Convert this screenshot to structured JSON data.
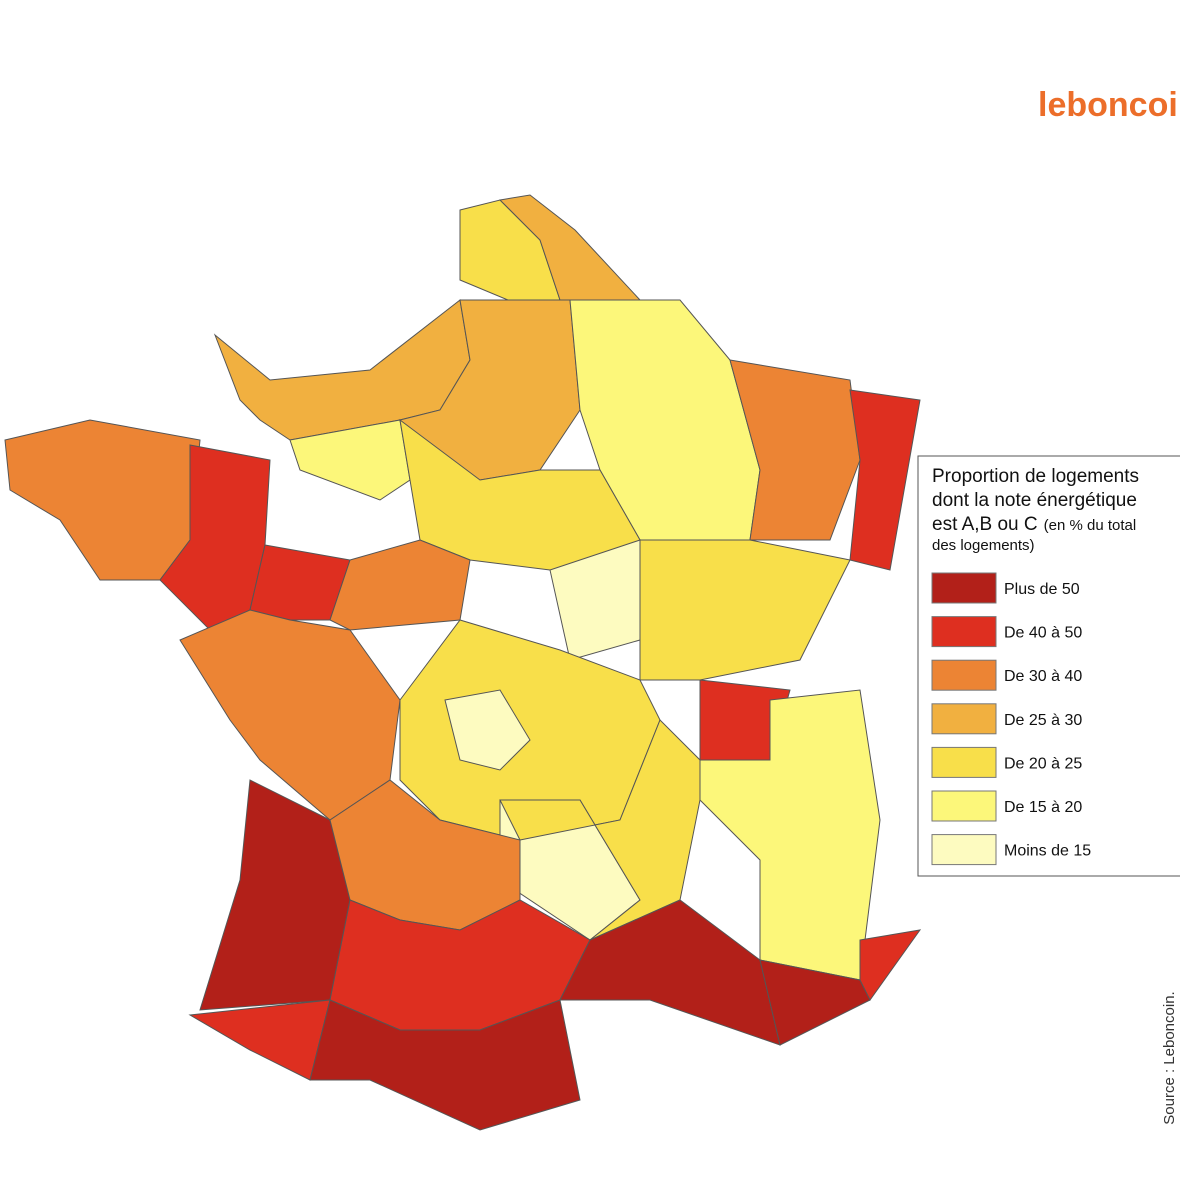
{
  "logo": "leboncoin",
  "legend": {
    "title_lines": [
      "Proportion de logements",
      "dont la note énergétique",
      "est A,B ou C"
    ],
    "subtitle_lines": [
      "(en % du total",
      "des logements)"
    ],
    "items": [
      {
        "label": "Plus de 50",
        "color": "#b22019"
      },
      {
        "label": "De 40 à 50",
        "color": "#de2f20"
      },
      {
        "label": "De 30 à 40",
        "color": "#ec8434"
      },
      {
        "label": "De 25 à 30",
        "color": "#f1b040"
      },
      {
        "label": "De 20 à 25",
        "color": "#f8df4a"
      },
      {
        "label": "De 15 à 20",
        "color": "#fcf77a"
      },
      {
        "label": "Moins de 15",
        "color": "#fdfbc0"
      }
    ]
  },
  "source": "Source : Leboncoin."
}
